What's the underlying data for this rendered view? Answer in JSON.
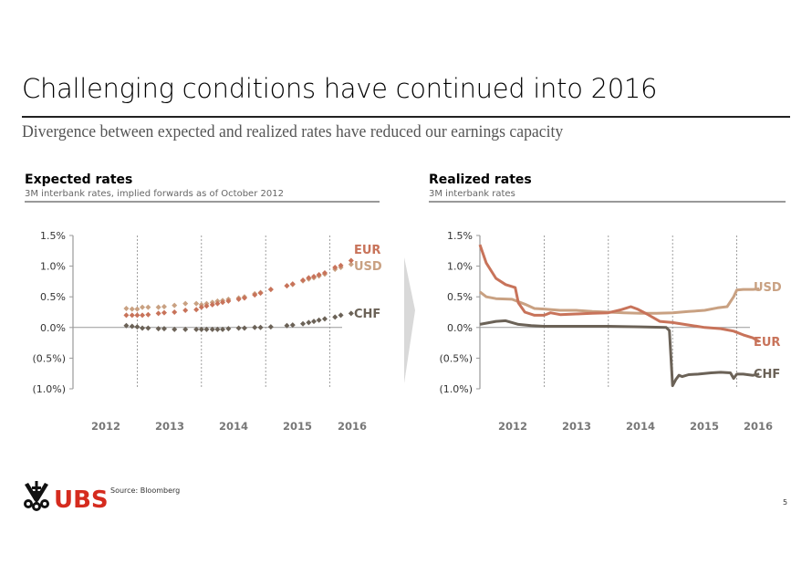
{
  "header": {
    "title": "Challenging conditions have continued into 2016",
    "subtitle": "Divergence between expected and realized rates have reduced our earnings capacity"
  },
  "footer": {
    "brand": "UBS",
    "source": "Source: Bloomberg",
    "page_number": "5"
  },
  "colors": {
    "EUR": "#c8735a",
    "USD": "#c9a182",
    "CHF": "#6b6257",
    "axis": "#999999",
    "gridline": "#888888",
    "tick_label": "#333333",
    "year_label": "#777777",
    "brand_red": "#d52b1e"
  },
  "chart_data": [
    {
      "id": "expected",
      "type": "scatter",
      "title": "Expected rates",
      "subtitle": "3M interbank rates, implied forwards as of October 2012",
      "xlabel": "",
      "ylabel": "",
      "ylim": [
        -1.0,
        1.5
      ],
      "xlim": [
        2011.5,
        2016.4
      ],
      "yticks": [
        1.5,
        1.0,
        0.5,
        0.0,
        -0.5,
        -1.0
      ],
      "ytick_labels": [
        "1.5%",
        "1.0%",
        "0.5%",
        "0.0%",
        "(0.5%)",
        "(1.0%)"
      ],
      "x_tick_labels": [
        "2012",
        "2013",
        "2014",
        "2015",
        "2016"
      ],
      "year_dividers": [
        2012.5,
        2013.5,
        2014.5,
        2015.5
      ],
      "legend": "right-inline",
      "series": [
        {
          "name": "USD",
          "x": [
            2012.33,
            2012.42,
            2012.5,
            2012.58,
            2012.67,
            2012.83,
            2012.92,
            2013.08,
            2013.25,
            2013.42,
            2013.5,
            2013.58,
            2013.67,
            2013.75,
            2013.83,
            2013.92,
            2014.08,
            2014.17,
            2014.33,
            2014.42,
            2014.58,
            2014.83,
            2014.92,
            2015.08,
            2015.17,
            2015.25,
            2015.33,
            2015.42,
            2015.58,
            2015.67,
            2015.83
          ],
          "y": [
            0.31,
            0.3,
            0.3,
            0.33,
            0.33,
            0.33,
            0.34,
            0.36,
            0.39,
            0.39,
            0.37,
            0.39,
            0.41,
            0.43,
            0.44,
            0.46,
            0.48,
            0.5,
            0.55,
            0.57,
            0.62,
            0.68,
            0.7,
            0.76,
            0.79,
            0.81,
            0.84,
            0.87,
            0.95,
            0.98,
            1.03
          ]
        },
        {
          "name": "EUR",
          "x": [
            2012.33,
            2012.42,
            2012.5,
            2012.58,
            2012.67,
            2012.83,
            2012.92,
            2013.08,
            2013.25,
            2013.42,
            2013.5,
            2013.58,
            2013.67,
            2013.75,
            2013.83,
            2013.92,
            2014.08,
            2014.17,
            2014.33,
            2014.42,
            2014.58,
            2014.83,
            2014.92,
            2015.08,
            2015.17,
            2015.25,
            2015.33,
            2015.42,
            2015.58,
            2015.67,
            2015.83
          ],
          "y": [
            0.2,
            0.2,
            0.2,
            0.2,
            0.21,
            0.23,
            0.24,
            0.25,
            0.28,
            0.29,
            0.33,
            0.35,
            0.37,
            0.39,
            0.41,
            0.43,
            0.46,
            0.48,
            0.53,
            0.56,
            0.62,
            0.68,
            0.71,
            0.77,
            0.81,
            0.83,
            0.86,
            0.89,
            0.98,
            1.01,
            1.09
          ]
        },
        {
          "name": "CHF",
          "x": [
            2012.33,
            2012.42,
            2012.5,
            2012.58,
            2012.67,
            2012.83,
            2012.92,
            2013.08,
            2013.25,
            2013.42,
            2013.5,
            2013.58,
            2013.67,
            2013.75,
            2013.83,
            2013.92,
            2014.08,
            2014.17,
            2014.33,
            2014.42,
            2014.58,
            2014.83,
            2014.92,
            2015.08,
            2015.17,
            2015.25,
            2015.33,
            2015.42,
            2015.58,
            2015.67,
            2015.83
          ],
          "y": [
            0.03,
            0.02,
            0.01,
            -0.01,
            -0.01,
            -0.02,
            -0.02,
            -0.03,
            -0.03,
            -0.03,
            -0.03,
            -0.03,
            -0.03,
            -0.03,
            -0.03,
            -0.02,
            -0.01,
            -0.01,
            0.0,
            0.0,
            0.01,
            0.03,
            0.04,
            0.06,
            0.08,
            0.1,
            0.12,
            0.14,
            0.17,
            0.2,
            0.23
          ]
        }
      ]
    },
    {
      "id": "realized",
      "type": "line",
      "title": "Realized rates",
      "subtitle": "3M interbank rates",
      "xlabel": "",
      "ylabel": "",
      "ylim": [
        -1.0,
        1.5
      ],
      "xlim": [
        2011.5,
        2016.4
      ],
      "yticks": [
        1.5,
        1.0,
        0.5,
        0.0,
        -0.5,
        -1.0
      ],
      "ytick_labels": [
        "1.5%",
        "1.0%",
        "0.5%",
        "0.0%",
        "(0.5%)",
        "(1.0%)"
      ],
      "x_tick_labels": [
        "2012",
        "2013",
        "2014",
        "2015",
        "2016"
      ],
      "year_dividers": [
        2012.5,
        2013.5,
        2014.5,
        2015.5
      ],
      "legend": "right-inline",
      "series": [
        {
          "name": "USD",
          "x": [
            2011.5,
            2011.6,
            2011.75,
            2012.0,
            2012.2,
            2012.35,
            2012.5,
            2012.75,
            2013.0,
            2013.25,
            2013.5,
            2013.75,
            2014.0,
            2014.25,
            2014.5,
            2014.75,
            2015.0,
            2015.2,
            2015.35,
            2015.45,
            2015.5,
            2015.6,
            2015.75,
            2015.85
          ],
          "y": [
            0.58,
            0.5,
            0.47,
            0.46,
            0.38,
            0.31,
            0.3,
            0.28,
            0.28,
            0.26,
            0.25,
            0.24,
            0.23,
            0.23,
            0.24,
            0.26,
            0.28,
            0.32,
            0.34,
            0.5,
            0.61,
            0.62,
            0.62,
            0.63
          ]
        },
        {
          "name": "EUR",
          "x": [
            2011.5,
            2011.6,
            2011.75,
            2011.9,
            2012.05,
            2012.1,
            2012.2,
            2012.35,
            2012.5,
            2012.6,
            2012.75,
            2013.0,
            2013.25,
            2013.5,
            2013.7,
            2013.85,
            2013.95,
            2014.1,
            2014.3,
            2014.5,
            2014.75,
            2015.0,
            2015.25,
            2015.45,
            2015.6,
            2015.75,
            2015.85
          ],
          "y": [
            1.35,
            1.05,
            0.8,
            0.7,
            0.65,
            0.4,
            0.25,
            0.2,
            0.2,
            0.24,
            0.21,
            0.22,
            0.23,
            0.24,
            0.29,
            0.34,
            0.3,
            0.22,
            0.1,
            0.08,
            0.04,
            0.0,
            -0.02,
            -0.06,
            -0.12,
            -0.17,
            -0.23
          ]
        },
        {
          "name": "CHF",
          "x": [
            2011.5,
            2011.75,
            2011.9,
            2012.1,
            2012.3,
            2012.5,
            2012.75,
            2013.0,
            2013.5,
            2014.0,
            2014.4,
            2014.45,
            2014.5,
            2014.55,
            2014.6,
            2014.65,
            2014.75,
            2014.9,
            2015.1,
            2015.25,
            2015.4,
            2015.45,
            2015.5,
            2015.6,
            2015.75,
            2015.85
          ],
          "y": [
            0.05,
            0.1,
            0.11,
            0.05,
            0.03,
            0.02,
            0.02,
            0.02,
            0.02,
            0.01,
            0.0,
            -0.05,
            -0.95,
            -0.85,
            -0.78,
            -0.8,
            -0.77,
            -0.76,
            -0.74,
            -0.73,
            -0.74,
            -0.83,
            -0.76,
            -0.76,
            -0.78,
            -0.76
          ]
        }
      ]
    }
  ]
}
